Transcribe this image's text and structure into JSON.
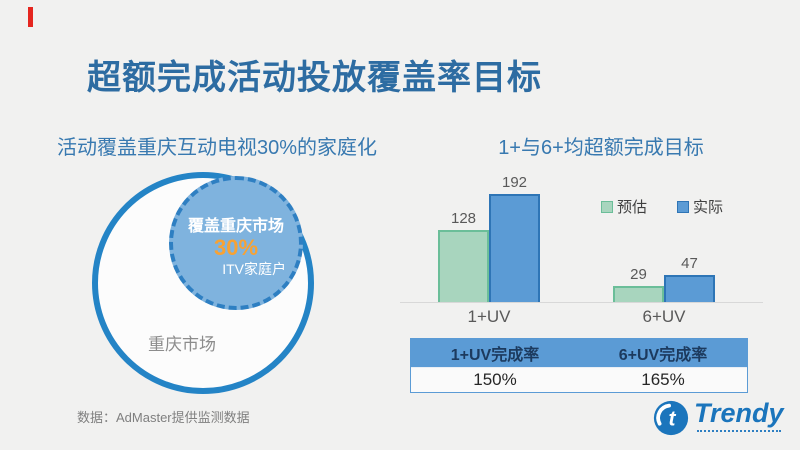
{
  "slide": {
    "title": "超额完成活动投放覆盖率目标",
    "footer": "数据：AdMaster提供监测数据"
  },
  "left_section": {
    "subtitle": "活动覆盖重庆互动电视30%的家庭化",
    "venn": {
      "outer_label": "重庆市场",
      "inner_line1": "覆盖重庆市场",
      "inner_value": "30%",
      "inner_line3": "ITV家庭户"
    }
  },
  "right_section": {
    "subtitle": "1+与6+均超额完成目标",
    "chart_data": {
      "type": "bar",
      "categories": [
        "1+UV",
        "6+UV"
      ],
      "series": [
        {
          "name": "预估",
          "values": [
            128,
            29
          ],
          "fill": "#A8D5BE",
          "border": "#6BBE99"
        },
        {
          "name": "实际",
          "values": [
            192,
            47
          ],
          "fill": "#5B9BD5",
          "border": "#2E75B6"
        }
      ],
      "title": "",
      "xlabel": "",
      "ylabel": "",
      "ylim": [
        0,
        200
      ],
      "grid": false,
      "data_labels": true,
      "legend_position": "top-right"
    },
    "table": {
      "headers": [
        "1+UV完成率",
        "6+UV完成率"
      ],
      "values": [
        "150%",
        "165%"
      ]
    }
  },
  "logo": {
    "text": "Trendy"
  },
  "colors": {
    "background": "#F1F1F0",
    "accent_red": "#E5261F",
    "title_blue": "#2D6CA2",
    "subtitle_blue": "#3879B0",
    "circle_border_blue": "#2484C6",
    "inner_circle_fill": "#7FB3DE",
    "highlight_orange": "#F7A234",
    "gray_label": "#8C8C8C",
    "bar_green_fill": "#A8D5BE",
    "bar_green_border": "#6BBE99",
    "bar_blue_fill": "#5B9BD5",
    "bar_blue_border": "#2E75B6",
    "table_header_bg": "#5B9BD5",
    "table_header_text": "#1C3A5E",
    "logo_blue": "#1B75BC"
  }
}
